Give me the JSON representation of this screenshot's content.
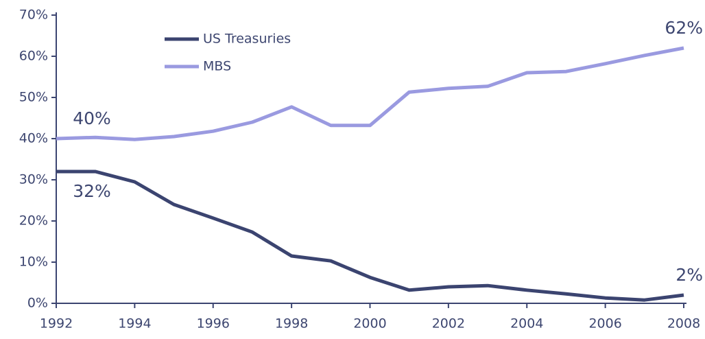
{
  "chart_data": {
    "type": "line",
    "x": [
      1992,
      1993,
      1994,
      1995,
      1996,
      1997,
      1998,
      1999,
      2000,
      2001,
      2002,
      2003,
      2004,
      2005,
      2006,
      2007,
      2008
    ],
    "xlim": [
      1992,
      2008
    ],
    "xticks": [
      1992,
      1994,
      1996,
      1998,
      2000,
      2002,
      2004,
      2006,
      2008
    ],
    "ylim": [
      0,
      70
    ],
    "yticks": [
      {
        "value": 0,
        "label": "0%"
      },
      {
        "value": 10,
        "label": "10%"
      },
      {
        "value": 20,
        "label": "20%"
      },
      {
        "value": 30,
        "label": "30%"
      },
      {
        "value": 40,
        "label": "40%"
      },
      {
        "value": 50,
        "label": "50%"
      },
      {
        "value": 60,
        "label": "60%"
      },
      {
        "value": 70,
        "label": "70%"
      }
    ],
    "grid": false,
    "legend": "upper left",
    "series": [
      {
        "name": "US Treasuries",
        "color": "#3b4470",
        "values": [
          32,
          32,
          29.5,
          24,
          20.7,
          17.3,
          11.5,
          10.3,
          6.3,
          3.2,
          4,
          4.3,
          3.2,
          2.3,
          1.3,
          0.8,
          2
        ],
        "value_labels": [
          "32%",
          null,
          null,
          null,
          null,
          null,
          null,
          null,
          null,
          null,
          null,
          null,
          null,
          null,
          null,
          null,
          "2%"
        ]
      },
      {
        "name": "MBS",
        "color": "#9a9ae0",
        "values": [
          40,
          40.3,
          39.8,
          40.5,
          41.8,
          44,
          47.7,
          43.2,
          43.2,
          51.3,
          52.2,
          52.7,
          56,
          56.3,
          58.2,
          60.2,
          62
        ],
        "value_labels": [
          "40%",
          null,
          null,
          null,
          null,
          null,
          null,
          null,
          null,
          null,
          null,
          null,
          null,
          null,
          null,
          null,
          "62%"
        ]
      }
    ]
  }
}
